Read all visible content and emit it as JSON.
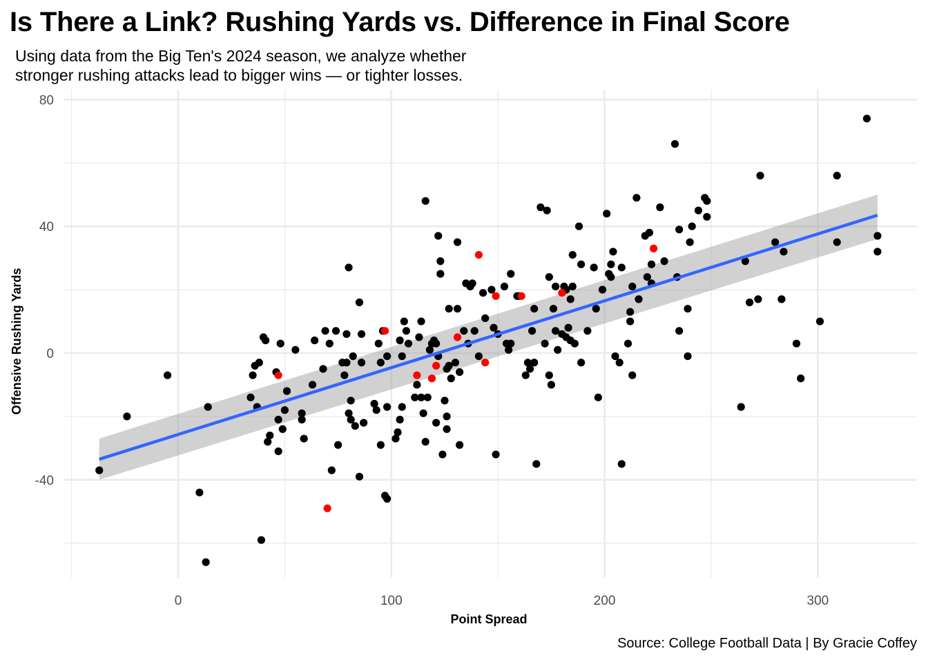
{
  "chart_data": {
    "type": "scatter",
    "title": "Is There a Link? Rushing Yards vs. Difference in Final Score",
    "subtitle_lines": [
      "Using data from the Big Ten's 2024 season, we analyze whether",
      "stronger rushing attacks lead to bigger wins — or tighter losses."
    ],
    "caption": "Source: College Football Data | By Gracie Coffey",
    "xlabel": "Point Spread",
    "ylabel": "Offensive Rushing Yards",
    "xlim": [
      -37,
      332
    ],
    "ylim": [
      -70,
      80
    ],
    "x_ticks": [
      0,
      100,
      200,
      300
    ],
    "x_tick_labels": [
      "0",
      "100",
      "200",
      "300"
    ],
    "y_ticks": [
      -40,
      0,
      40,
      80
    ],
    "y_tick_labels": [
      "-40",
      "0",
      "40",
      "80"
    ],
    "grid": true,
    "colors": {
      "points": "#000000",
      "highlight": "#ff0000",
      "trend": "#3366ff",
      "band": "#999999"
    },
    "trend": {
      "x": [
        -37,
        328
      ],
      "y": [
        -33.5,
        43.5
      ],
      "ci_lower": [
        -40,
        36
      ],
      "ci_upper": [
        -27,
        50
      ]
    },
    "series": [
      {
        "color": "#000000",
        "points": [
          [
            -37,
            -37
          ],
          [
            -24,
            -20
          ],
          [
            -5,
            -7
          ],
          [
            10,
            -44
          ],
          [
            13,
            -66
          ],
          [
            14,
            -17
          ],
          [
            34,
            -14
          ],
          [
            35,
            -7
          ],
          [
            36,
            -4
          ],
          [
            37,
            -17
          ],
          [
            38,
            -3
          ],
          [
            39,
            -59
          ],
          [
            40,
            5
          ],
          [
            41,
            4
          ],
          [
            42,
            -28
          ],
          [
            43,
            -26
          ],
          [
            46,
            -6
          ],
          [
            47,
            -21
          ],
          [
            47,
            -31
          ],
          [
            48,
            3
          ],
          [
            49,
            -24
          ],
          [
            50,
            -18
          ],
          [
            51,
            -12
          ],
          [
            55,
            1
          ],
          [
            58,
            -19
          ],
          [
            58,
            -21
          ],
          [
            59,
            -27
          ],
          [
            63,
            -10
          ],
          [
            64,
            4
          ],
          [
            68,
            -5
          ],
          [
            69,
            7
          ],
          [
            71,
            3
          ],
          [
            72,
            -37
          ],
          [
            74,
            7
          ],
          [
            75,
            -29
          ],
          [
            77,
            -3
          ],
          [
            78,
            -7
          ],
          [
            79,
            6
          ],
          [
            79,
            -3
          ],
          [
            80,
            27
          ],
          [
            80,
            -19
          ],
          [
            81,
            -15
          ],
          [
            81,
            -21
          ],
          [
            82,
            -1
          ],
          [
            83,
            -23
          ],
          [
            85,
            -39
          ],
          [
            85,
            16
          ],
          [
            86,
            6
          ],
          [
            86,
            -3
          ],
          [
            87,
            -22
          ],
          [
            92,
            -16
          ],
          [
            93,
            -18
          ],
          [
            94,
            3
          ],
          [
            95,
            -29
          ],
          [
            95,
            -3
          ],
          [
            96,
            7
          ],
          [
            97,
            -45
          ],
          [
            98,
            -46
          ],
          [
            98,
            -1
          ],
          [
            98,
            -17
          ],
          [
            102,
            -27
          ],
          [
            103,
            -25
          ],
          [
            104,
            -21
          ],
          [
            104,
            4
          ],
          [
            105,
            -17
          ],
          [
            105,
            -1
          ],
          [
            106,
            10
          ],
          [
            107,
            7
          ],
          [
            108,
            3
          ],
          [
            111,
            -14
          ],
          [
            112,
            -10
          ],
          [
            113,
            5
          ],
          [
            114,
            10
          ],
          [
            114,
            -14
          ],
          [
            115,
            -19
          ],
          [
            116,
            -28
          ],
          [
            116,
            48
          ],
          [
            117,
            -14
          ],
          [
            118,
            1
          ],
          [
            119,
            3
          ],
          [
            120,
            4
          ],
          [
            121,
            -22
          ],
          [
            121,
            3
          ],
          [
            122,
            -1
          ],
          [
            122,
            37
          ],
          [
            123,
            29
          ],
          [
            123,
            25
          ],
          [
            124,
            -32
          ],
          [
            125,
            -15
          ],
          [
            126,
            -24
          ],
          [
            126,
            -20
          ],
          [
            126,
            -5
          ],
          [
            127,
            -4
          ],
          [
            127,
            14
          ],
          [
            128,
            -8
          ],
          [
            130,
            -3
          ],
          [
            131,
            35
          ],
          [
            131,
            14
          ],
          [
            132,
            -29
          ],
          [
            132,
            -6
          ],
          [
            134,
            7
          ],
          [
            135,
            22
          ],
          [
            136,
            3
          ],
          [
            137,
            21
          ],
          [
            138,
            22
          ],
          [
            139,
            7
          ],
          [
            141,
            -1
          ],
          [
            143,
            19
          ],
          [
            144,
            11
          ],
          [
            147,
            20
          ],
          [
            148,
            8
          ],
          [
            149,
            -32
          ],
          [
            150,
            6
          ],
          [
            153,
            21
          ],
          [
            154,
            3
          ],
          [
            155,
            1
          ],
          [
            156,
            25
          ],
          [
            156,
            3
          ],
          [
            159,
            18
          ],
          [
            160,
            18
          ],
          [
            163,
            -7
          ],
          [
            164,
            -3
          ],
          [
            165,
            -5
          ],
          [
            166,
            7
          ],
          [
            167,
            -3
          ],
          [
            167,
            14
          ],
          [
            168,
            -35
          ],
          [
            170,
            46
          ],
          [
            172,
            3
          ],
          [
            173,
            45
          ],
          [
            174,
            -7
          ],
          [
            174,
            24
          ],
          [
            175,
            -10
          ],
          [
            176,
            14
          ],
          [
            177,
            7
          ],
          [
            177,
            21
          ],
          [
            178,
            1
          ],
          [
            180,
            6
          ],
          [
            181,
            21
          ],
          [
            182,
            5
          ],
          [
            182,
            20
          ],
          [
            183,
            8
          ],
          [
            184,
            17
          ],
          [
            184,
            4
          ],
          [
            185,
            21
          ],
          [
            185,
            31
          ],
          [
            186,
            3
          ],
          [
            188,
            40
          ],
          [
            189,
            28
          ],
          [
            189,
            -3
          ],
          [
            192,
            7
          ],
          [
            195,
            27
          ],
          [
            196,
            14
          ],
          [
            197,
            -14
          ],
          [
            199,
            20
          ],
          [
            201,
            44
          ],
          [
            202,
            25
          ],
          [
            203,
            28
          ],
          [
            203,
            24
          ],
          [
            204,
            32
          ],
          [
            205,
            -1
          ],
          [
            207,
            -3
          ],
          [
            208,
            27
          ],
          [
            208,
            -35
          ],
          [
            211,
            3
          ],
          [
            212,
            10
          ],
          [
            212,
            13
          ],
          [
            213,
            -7
          ],
          [
            213,
            21
          ],
          [
            215,
            49
          ],
          [
            216,
            17
          ],
          [
            219,
            37
          ],
          [
            220,
            24
          ],
          [
            221,
            38
          ],
          [
            222,
            28
          ],
          [
            222,
            22
          ],
          [
            226,
            46
          ],
          [
            228,
            29
          ],
          [
            233,
            66
          ],
          [
            234,
            24
          ],
          [
            235,
            39
          ],
          [
            235,
            7
          ],
          [
            239,
            14
          ],
          [
            239,
            -1
          ],
          [
            240,
            35
          ],
          [
            241,
            40
          ],
          [
            244,
            45
          ],
          [
            247,
            49
          ],
          [
            248,
            48
          ],
          [
            248,
            43
          ],
          [
            264,
            -17
          ],
          [
            266,
            29
          ],
          [
            268,
            16
          ],
          [
            272,
            17
          ],
          [
            273,
            56
          ],
          [
            280,
            35
          ],
          [
            283,
            17
          ],
          [
            284,
            32
          ],
          [
            290,
            3
          ],
          [
            292,
            -8
          ],
          [
            301,
            10
          ],
          [
            309,
            56
          ],
          [
            309,
            35
          ],
          [
            323,
            74
          ],
          [
            328,
            37
          ],
          [
            328,
            32
          ]
        ]
      },
      {
        "color": "#ff0000",
        "points": [
          [
            47,
            -7
          ],
          [
            70,
            -49
          ],
          [
            97,
            7
          ],
          [
            112,
            -7
          ],
          [
            119,
            -8
          ],
          [
            121,
            -4
          ],
          [
            131,
            5
          ],
          [
            141,
            31
          ],
          [
            144,
            -3
          ],
          [
            149,
            18
          ],
          [
            161,
            18
          ],
          [
            180,
            19
          ],
          [
            223,
            33
          ]
        ]
      }
    ]
  }
}
